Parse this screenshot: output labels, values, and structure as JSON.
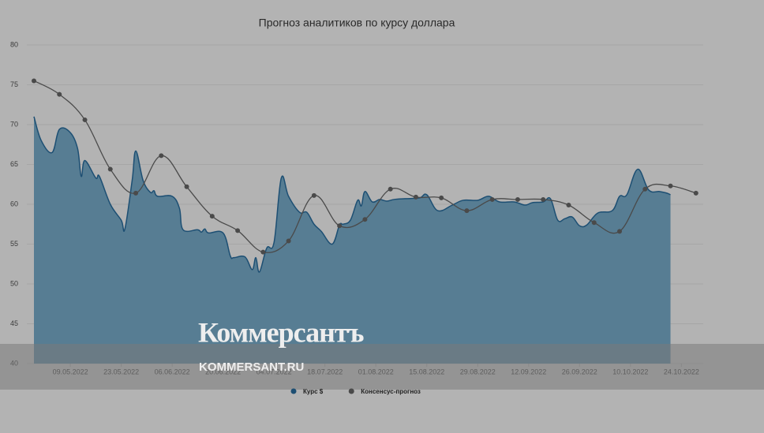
{
  "chart_data": {
    "type": "area-line",
    "title": "Прогноз аналитиков по курсу доллара",
    "series": [
      {
        "name": "Курс $",
        "color": "#1d4f73",
        "fill": "#577d93",
        "x": [
          "2022-04-29",
          "2022-05-01",
          "2022-05-04",
          "2022-05-06",
          "2022-05-09",
          "2022-05-11",
          "2022-05-12",
          "2022-05-13",
          "2022-05-16",
          "2022-05-17",
          "2022-05-20",
          "2022-05-23",
          "2022-05-24",
          "2022-05-26",
          "2022-05-27",
          "2022-05-29",
          "2022-05-31",
          "2022-06-01",
          "2022-06-02",
          "2022-06-06",
          "2022-06-08",
          "2022-06-09",
          "2022-06-13",
          "2022-06-14",
          "2022-06-15",
          "2022-06-16",
          "2022-06-20",
          "2022-06-22",
          "2022-06-23",
          "2022-06-26",
          "2022-06-28",
          "2022-06-29",
          "2022-06-30",
          "2022-07-02",
          "2022-07-04",
          "2022-07-06",
          "2022-07-08",
          "2022-07-11",
          "2022-07-13",
          "2022-07-15",
          "2022-07-17",
          "2022-07-20",
          "2022-07-22",
          "2022-07-23",
          "2022-07-25",
          "2022-07-27",
          "2022-07-28",
          "2022-07-29",
          "2022-07-31",
          "2022-08-02",
          "2022-08-04",
          "2022-08-06",
          "2022-08-09",
          "2022-08-13",
          "2022-08-15",
          "2022-08-18",
          "2022-08-22",
          "2022-08-25",
          "2022-08-29",
          "2022-09-01",
          "2022-09-04",
          "2022-09-08",
          "2022-09-11",
          "2022-09-13",
          "2022-09-16",
          "2022-09-18",
          "2022-09-20",
          "2022-09-22",
          "2022-09-24",
          "2022-09-26",
          "2022-09-28",
          "2022-10-01",
          "2022-10-05",
          "2022-10-07",
          "2022-10-09",
          "2022-10-12",
          "2022-10-15",
          "2022-10-18",
          "2022-10-20",
          "2022-10-21"
        ],
        "values": [
          71,
          68,
          66.5,
          69.4,
          69,
          67,
          63.5,
          65.5,
          63.3,
          63.5,
          60,
          58,
          56.9,
          63,
          66.7,
          63,
          61.5,
          61.7,
          61,
          61,
          59.5,
          56.8,
          56.8,
          56.5,
          56.9,
          56.4,
          56.4,
          53.5,
          53.3,
          53.4,
          51.8,
          53.3,
          51.5,
          54.5,
          55.2,
          63.3,
          61,
          59,
          59,
          57.5,
          56.6,
          55,
          57.4,
          57.5,
          58,
          60.5,
          59.8,
          61.6,
          60.3,
          60.6,
          60.4,
          60.6,
          60.7,
          60.8,
          61.2,
          59.2,
          59.9,
          60.5,
          60.5,
          61,
          60.3,
          60.3,
          59.9,
          60.2,
          60.3,
          60.7,
          58,
          58.2,
          58.4,
          57.3,
          57.4,
          58.9,
          59.2,
          61,
          61.2,
          64.4,
          61.8,
          61.6,
          61.4,
          61.2
        ]
      },
      {
        "name": "Консенсус-прогноз",
        "color": "#4a4a4a",
        "x": [
          "2022-04-29",
          "2022-05-06",
          "2022-05-13",
          "2022-05-20",
          "2022-05-27",
          "2022-06-03",
          "2022-06-10",
          "2022-06-17",
          "2022-06-24",
          "2022-07-01",
          "2022-07-08",
          "2022-07-15",
          "2022-07-22",
          "2022-07-29",
          "2022-08-05",
          "2022-08-12",
          "2022-08-19",
          "2022-08-26",
          "2022-09-02",
          "2022-09-09",
          "2022-09-16",
          "2022-09-23",
          "2022-09-30",
          "2022-10-07",
          "2022-10-14",
          "2022-10-21",
          "2022-10-28"
        ],
        "values": [
          75.5,
          73.8,
          70.6,
          64.4,
          61.4,
          66.1,
          62.2,
          58.5,
          56.7,
          54,
          55.4,
          61.1,
          57.3,
          58.1,
          61.9,
          60.9,
          60.8,
          59.2,
          60.6,
          60.6,
          60.6,
          59.9,
          57.7,
          56.6,
          61.9,
          62.3,
          61.4
        ]
      }
    ],
    "xlim": [
      "2022-04-29",
      "2022-10-30"
    ],
    "xticks": [
      {
        "value": "2022-05-09",
        "label": "09.05.2022"
      },
      {
        "value": "2022-05-23",
        "label": "23.05.2022"
      },
      {
        "value": "2022-06-06",
        "label": "06.06.2022"
      },
      {
        "value": "2022-06-20",
        "label": "20.06.2022"
      },
      {
        "value": "2022-07-04",
        "label": "04.07.2022"
      },
      {
        "value": "2022-07-18",
        "label": "18.07.2022"
      },
      {
        "value": "2022-08-01",
        "label": "01.08.2022"
      },
      {
        "value": "2022-08-15",
        "label": "15.08.2022"
      },
      {
        "value": "2022-08-29",
        "label": "29.08.2022"
      },
      {
        "value": "2022-09-12",
        "label": "12.09.2022"
      },
      {
        "value": "2022-09-26",
        "label": "26.09.2022"
      },
      {
        "value": "2022-10-10",
        "label": "10.10.2022"
      },
      {
        "value": "2022-10-24",
        "label": "24.10.2022"
      }
    ],
    "ylim": [
      40,
      80
    ],
    "yticks": [
      40,
      45,
      50,
      55,
      60,
      65,
      70,
      75,
      80
    ],
    "grid": true,
    "legend": "bottom"
  },
  "watermark": {
    "logo": "Коммерсантъ",
    "site": "KOMMERSANT.RU"
  }
}
